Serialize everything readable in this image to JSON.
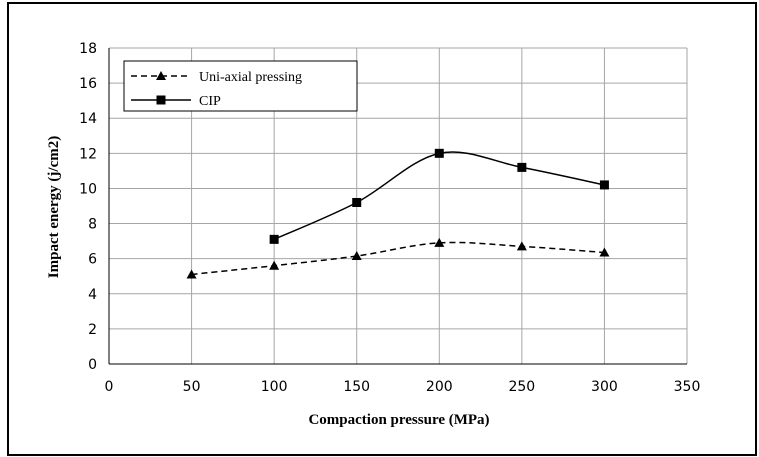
{
  "chart_data": {
    "type": "line",
    "title": "",
    "xlabel": "Compaction pressure (MPa)",
    "ylabel": "Impact energy (j/cm2)",
    "xlim": [
      0,
      350
    ],
    "ylim": [
      0,
      18
    ],
    "xticks": [
      0,
      50,
      100,
      150,
      200,
      250,
      300,
      350
    ],
    "yticks": [
      0,
      2,
      4,
      6,
      8,
      10,
      12,
      14,
      16,
      18
    ],
    "grid": true,
    "legend_position": "top-left",
    "series": [
      {
        "name": "Uni-axial pressing",
        "line_style": "dashed",
        "marker": "triangle",
        "color": "#000000",
        "x": [
          50,
          100,
          150,
          200,
          250,
          300
        ],
        "y": [
          5.1,
          5.6,
          6.15,
          6.9,
          6.7,
          6.35
        ]
      },
      {
        "name": "CIP",
        "line_style": "solid",
        "marker": "square",
        "color": "#000000",
        "x": [
          100,
          150,
          200,
          250,
          300
        ],
        "y": [
          7.1,
          9.2,
          12.0,
          11.2,
          10.2
        ]
      }
    ]
  }
}
